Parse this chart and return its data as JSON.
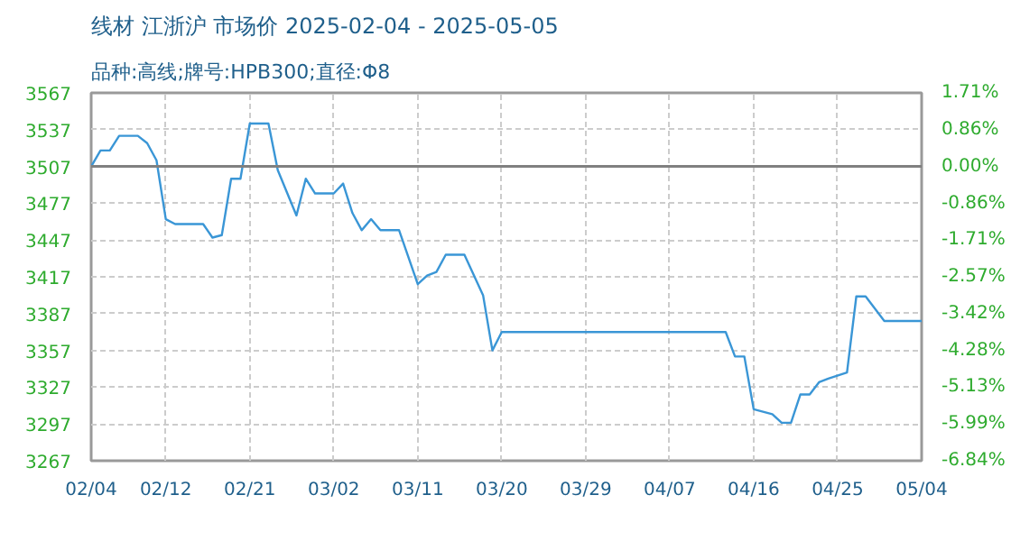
{
  "chart_data": {
    "type": "line",
    "title": "线材 江浙沪 市场价 2025-02-04 - 2025-05-05",
    "subtitle": "品种:高线;牌号:HPB300;直径:Φ8",
    "series": [
      {
        "color": "#3a96d6",
        "x": [
          "2025-02-04",
          "2025-02-05",
          "2025-02-06",
          "2025-02-07",
          "2025-02-09",
          "2025-02-10",
          "2025-02-11",
          "2025-02-12",
          "2025-02-13",
          "2025-02-16",
          "2025-02-17",
          "2025-02-18",
          "2025-02-19",
          "2025-02-20",
          "2025-02-21",
          "2025-02-23",
          "2025-02-24",
          "2025-02-26",
          "2025-02-27",
          "2025-02-28",
          "2025-03-02",
          "2025-03-03",
          "2025-03-04",
          "2025-03-05",
          "2025-03-06",
          "2025-03-07",
          "2025-03-09",
          "2025-03-11",
          "2025-03-12",
          "2025-03-13",
          "2025-03-14",
          "2025-03-16",
          "2025-03-18",
          "2025-03-19",
          "2025-03-20",
          "2025-04-13",
          "2025-04-14",
          "2025-04-15",
          "2025-04-16",
          "2025-04-18",
          "2025-04-19",
          "2025-04-20",
          "2025-04-21",
          "2025-04-22",
          "2025-04-23",
          "2025-04-24",
          "2025-04-26",
          "2025-04-27",
          "2025-04-28",
          "2025-04-30",
          "2025-05-04"
        ],
        "values": [
          3507,
          3520,
          3520,
          3532,
          3532,
          3526,
          3512,
          3464,
          3460,
          3460,
          3449,
          3451,
          3497,
          3497,
          3542,
          3542,
          3504,
          3467,
          3497,
          3485,
          3485,
          3493,
          3469,
          3455,
          3464,
          3455,
          3455,
          3411,
          3418,
          3421,
          3435,
          3435,
          3402,
          3357,
          3372,
          3372,
          3352,
          3352,
          3309,
          3305,
          3298,
          3298,
          3321,
          3321,
          3331,
          3334,
          3339,
          3401,
          3401,
          3381,
          3381
        ]
      }
    ],
    "xlim": [
      "2025-02-04",
      "2025-05-04"
    ],
    "xticks": [
      {
        "value": "2025-02-04",
        "label": "02/04"
      },
      {
        "value": "2025-02-12",
        "label": "02/12"
      },
      {
        "value": "2025-02-21",
        "label": "02/21"
      },
      {
        "value": "2025-03-02",
        "label": "03/02"
      },
      {
        "value": "2025-03-11",
        "label": "03/11"
      },
      {
        "value": "2025-03-20",
        "label": "03/20"
      },
      {
        "value": "2025-03-29",
        "label": "03/29"
      },
      {
        "value": "2025-04-07",
        "label": "04/07"
      },
      {
        "value": "2025-04-16",
        "label": "04/16"
      },
      {
        "value": "2025-04-25",
        "label": "04/25"
      },
      {
        "value": "2025-05-04",
        "label": "05/04"
      }
    ],
    "ylim": [
      3267,
      3567
    ],
    "yticks": [
      3267,
      3297,
      3327,
      3357,
      3387,
      3417,
      3447,
      3477,
      3507,
      3537,
      3567
    ],
    "y2lim": [
      -6.84,
      1.71
    ],
    "y2ticks": [
      {
        "value": -6.84,
        "label": "-6.84%"
      },
      {
        "value": -5.99,
        "label": "-5.99%"
      },
      {
        "value": -5.13,
        "label": "-5.13%"
      },
      {
        "value": -4.28,
        "label": "-4.28%"
      },
      {
        "value": -3.42,
        "label": "-3.42%"
      },
      {
        "value": -2.57,
        "label": "-2.57%"
      },
      {
        "value": -1.71,
        "label": "-1.71%"
      },
      {
        "value": -0.86,
        "label": "-0.86%"
      },
      {
        "value": 0,
        "label": "0.00%"
      },
      {
        "value": 0.86,
        "label": "0.86%"
      },
      {
        "value": 1.71,
        "label": "1.71%"
      }
    ],
    "ref_lines": [
      {
        "axis": "y",
        "value": 3507,
        "color": "#808080"
      }
    ],
    "grid": true,
    "marker": "none",
    "line_style": "solid"
  }
}
